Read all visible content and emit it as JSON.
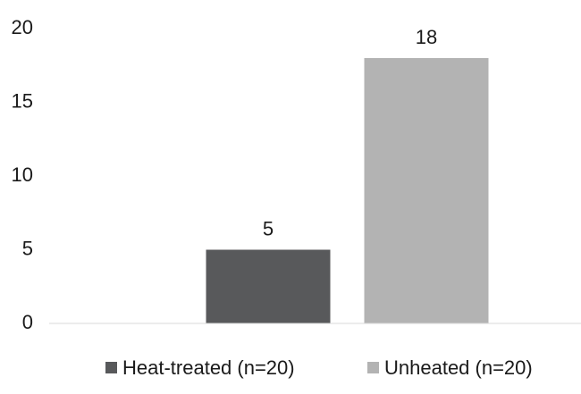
{
  "chart_data": {
    "type": "bar",
    "categories": [
      null
    ],
    "series": [
      {
        "name": "Heat-treated (n=20)",
        "color": "#58595b",
        "values": [
          5
        ]
      },
      {
        "name": "Unheated (n=20)",
        "color": "#b3b3b3",
        "values": [
          18
        ]
      }
    ],
    "ylim": [
      0,
      20
    ],
    "yticks": [
      0,
      5,
      10,
      15,
      20
    ],
    "grid": false,
    "data_labels": true,
    "legend": "bottom"
  }
}
